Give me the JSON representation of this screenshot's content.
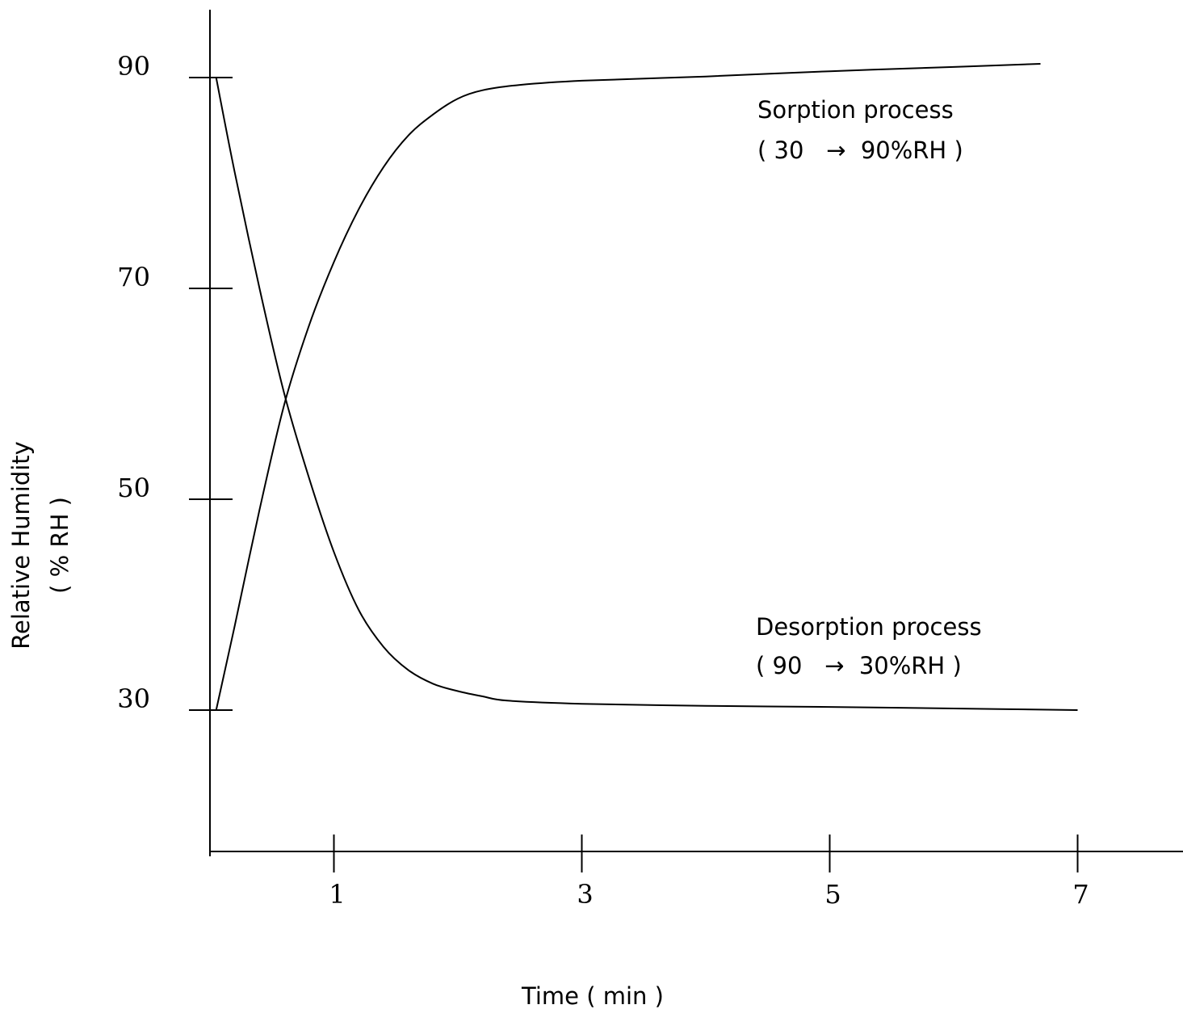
{
  "chart_data": {
    "type": "line",
    "title": "",
    "xlabel": "Time ( min )",
    "ylabel": [
      "Relative Humidity",
      "( % RH )"
    ],
    "x_ticks": [
      1,
      3,
      5,
      7
    ],
    "y_ticks": [
      30,
      50,
      70,
      90
    ],
    "xlim": [
      0,
      7.9
    ],
    "ylim": [
      16.5,
      96.5
    ],
    "grid": false,
    "series": [
      {
        "name": "Sorption process",
        "label_line2": "( 30   →  90%RH )",
        "points": [
          [
            0.05,
            30.0
          ],
          [
            0.2,
            38.0
          ],
          [
            0.4,
            49.0
          ],
          [
            0.6,
            59.0
          ],
          [
            0.8,
            66.5
          ],
          [
            1.0,
            72.5
          ],
          [
            1.2,
            77.5
          ],
          [
            1.4,
            81.5
          ],
          [
            1.6,
            84.5
          ],
          [
            1.8,
            86.5
          ],
          [
            2.0,
            88.0
          ],
          [
            2.2,
            88.8
          ],
          [
            2.5,
            89.3
          ],
          [
            3.0,
            89.7
          ],
          [
            4.0,
            90.1
          ],
          [
            5.0,
            90.6
          ],
          [
            6.0,
            91.0
          ],
          [
            6.7,
            91.3
          ]
        ]
      },
      {
        "name": "Desorption process",
        "label_line2": "( 90   →  30%RH )",
        "points": [
          [
            0.05,
            90.0
          ],
          [
            0.2,
            81.0
          ],
          [
            0.4,
            70.0
          ],
          [
            0.6,
            60.0
          ],
          [
            0.8,
            52.0
          ],
          [
            1.0,
            45.0
          ],
          [
            1.2,
            39.5
          ],
          [
            1.4,
            36.0
          ],
          [
            1.6,
            33.8
          ],
          [
            1.8,
            32.5
          ],
          [
            2.0,
            31.8
          ],
          [
            2.2,
            31.3
          ],
          [
            2.4,
            30.9
          ],
          [
            3.0,
            30.6
          ],
          [
            4.0,
            30.4
          ],
          [
            5.0,
            30.3
          ],
          [
            6.0,
            30.15
          ],
          [
            7.0,
            30.0
          ]
        ]
      }
    ]
  }
}
